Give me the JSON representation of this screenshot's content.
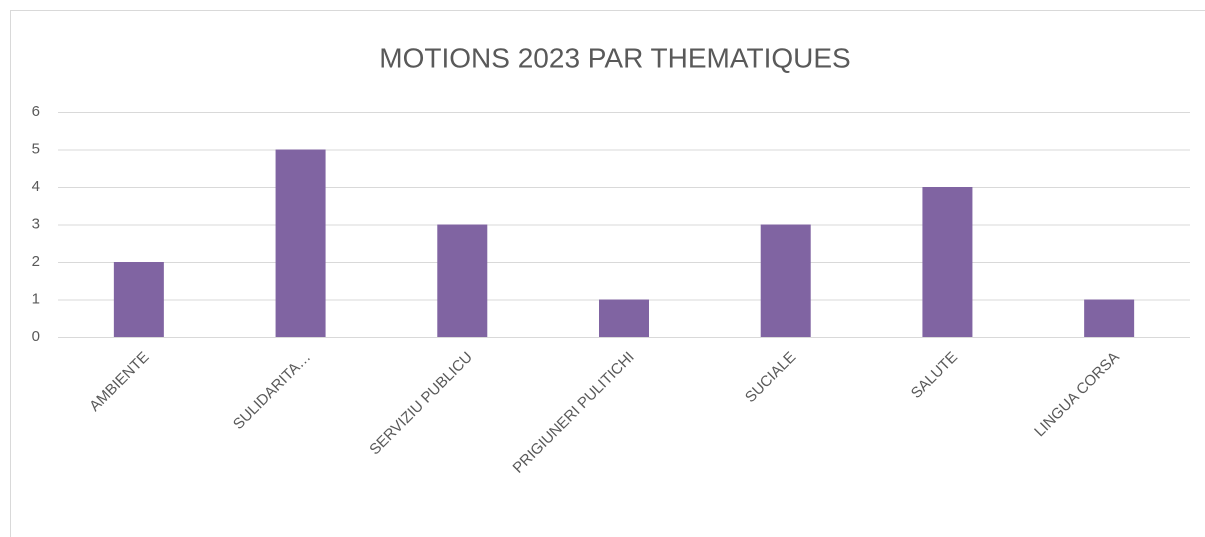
{
  "chart_data": {
    "type": "bar",
    "title": "MOTIONS 2023 PAR THEMATIQUES",
    "categories": [
      "AMBIENTE",
      "SULIDARITA…",
      "SERVIZIU PUBLICU",
      "PRIGIUNERI PULITICHI",
      "SUCIALE",
      "SALUTE",
      "LINGUA CORSA"
    ],
    "values": [
      2,
      5,
      3,
      1,
      3,
      4,
      1
    ],
    "color": "#8064a2",
    "ylim": [
      0,
      6
    ],
    "yticks": [
      0,
      1,
      2,
      3,
      4,
      5,
      6
    ],
    "grid": true
  }
}
